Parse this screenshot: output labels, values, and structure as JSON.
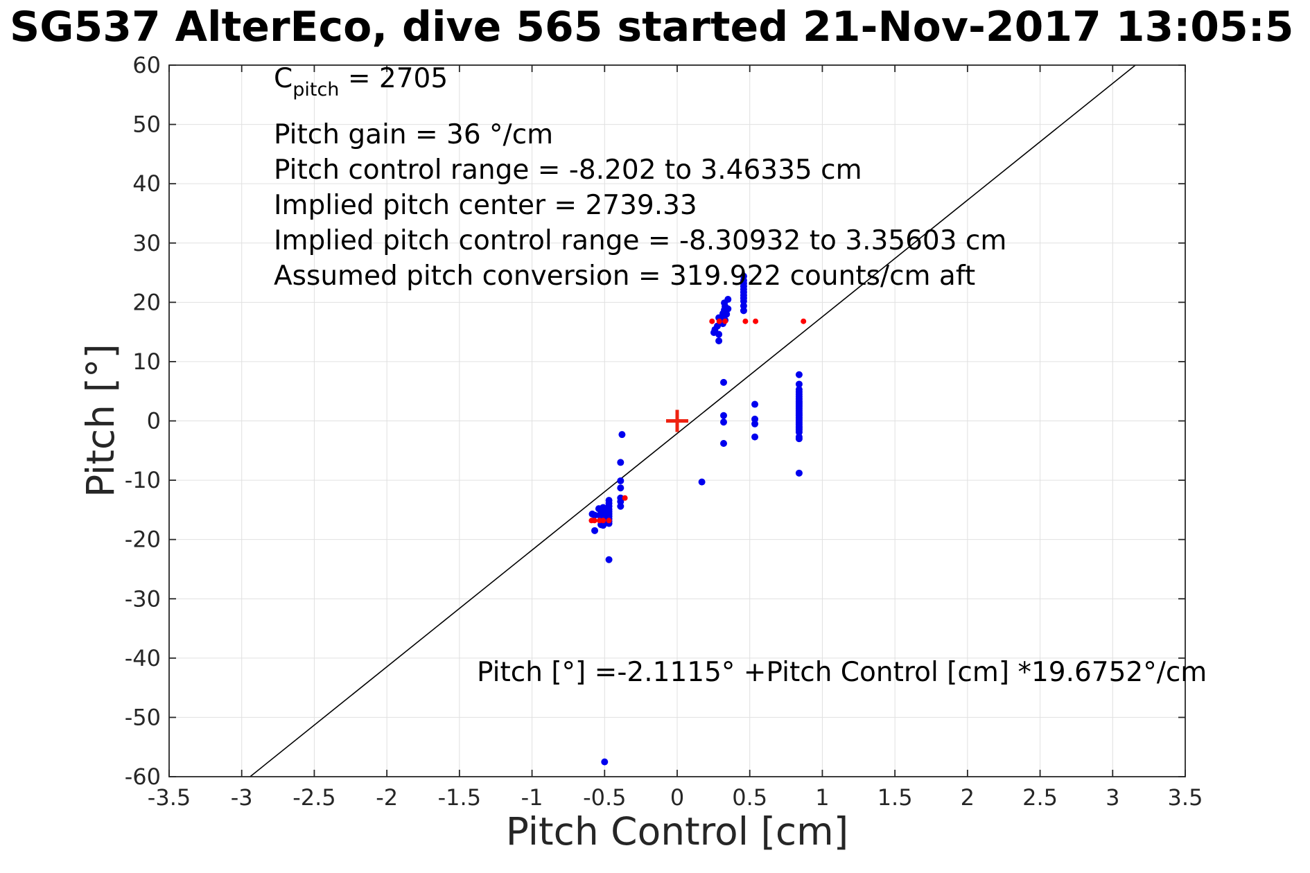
{
  "title": "SG537 AlterEco, dive 565 started 21-Nov-2017 13:05:5",
  "annotations": {
    "c_base": "C",
    "c_sub": "pitch",
    "c_rest": " = 2705",
    "lines": [
      "Pitch gain = 36 °/cm",
      "Pitch control range = -8.202 to 3.46335 cm",
      "Implied pitch center = 2739.33",
      "Implied pitch control range = -8.30932 to 3.35603 cm",
      "Assumed pitch conversion = 319.922 counts/cm aft"
    ]
  },
  "equation": "Pitch [°] =-2.1115° +Pitch Control [cm] *19.6752°/cm",
  "chart_data": {
    "type": "scatter",
    "title": "SG537 AlterEco, dive 565 started 21-Nov-2017 13:05:5",
    "xlabel": "Pitch Control [cm]",
    "ylabel": "Pitch [°]",
    "xlim": [
      -3.5,
      3.5
    ],
    "ylim": [
      -60,
      60
    ],
    "xticks": [
      -3.5,
      -3,
      -2.5,
      -2,
      -1.5,
      -1,
      -0.5,
      0,
      0.5,
      1,
      1.5,
      2,
      2.5,
      3,
      3.5
    ],
    "xtick_labels": [
      "-3.5",
      "-3",
      "-2.5",
      "-2",
      "-1.5",
      "-1",
      "-0.5",
      "0",
      "0.5",
      "1",
      "1.5",
      "2",
      "2.5",
      "3",
      "3.5"
    ],
    "yticks": [
      -60,
      -50,
      -40,
      -30,
      -20,
      -10,
      0,
      10,
      20,
      30,
      40,
      50,
      60
    ],
    "ytick_labels": [
      "-60",
      "-50",
      "-40",
      "-30",
      "-20",
      "-10",
      "0",
      "10",
      "20",
      "30",
      "40",
      "50",
      "60"
    ],
    "grid": true,
    "grid_color": "#e0e0e0",
    "axis_color": "#262626",
    "fit_line": {
      "slope": 19.6752,
      "intercept": -2.1115,
      "color": "#000000"
    },
    "series": [
      {
        "name": "observed-pitch-blue",
        "color": "#0000ee",
        "marker": "dot",
        "size": 5,
        "points": [
          [
            -0.5,
            -57.5
          ],
          [
            -0.47,
            -23.4
          ],
          [
            -0.38,
            -2.3
          ],
          [
            -0.39,
            -7.0
          ],
          [
            -0.39,
            -10.1
          ],
          [
            -0.39,
            -11.3
          ],
          [
            -0.39,
            -13.0
          ],
          [
            -0.39,
            -13.6
          ],
          [
            -0.39,
            -14.4
          ],
          [
            -0.47,
            -13.4
          ],
          [
            -0.47,
            -13.9
          ],
          [
            -0.47,
            -14.4
          ],
          [
            -0.47,
            -14.9
          ],
          [
            -0.47,
            -15.3
          ],
          [
            -0.47,
            -15.7
          ],
          [
            -0.47,
            -16.1
          ],
          [
            -0.47,
            -16.5
          ],
          [
            -0.47,
            -16.9
          ],
          [
            -0.47,
            -17.3
          ],
          [
            -0.51,
            -14.6
          ],
          [
            -0.51,
            -15.1
          ],
          [
            -0.51,
            -15.6
          ],
          [
            -0.51,
            -16.1
          ],
          [
            -0.51,
            -16.6
          ],
          [
            -0.51,
            -17.1
          ],
          [
            -0.51,
            -17.6
          ],
          [
            -0.535,
            -15.9
          ],
          [
            -0.568,
            -15.9
          ],
          [
            -0.585,
            -15.7
          ],
          [
            -0.54,
            -14.8
          ],
          [
            -0.525,
            -17.5
          ],
          [
            -0.568,
            -18.5
          ],
          [
            0.17,
            -10.3
          ],
          [
            0.32,
            6.5
          ],
          [
            0.32,
            0.9
          ],
          [
            0.32,
            -0.2
          ],
          [
            0.32,
            -3.8
          ],
          [
            0.535,
            2.8
          ],
          [
            0.535,
            0.3
          ],
          [
            0.535,
            -0.5
          ],
          [
            0.535,
            -2.7
          ],
          [
            0.35,
            20.5
          ],
          [
            0.325,
            19.9
          ],
          [
            0.33,
            19.3
          ],
          [
            0.35,
            18.9
          ],
          [
            0.325,
            18.7
          ],
          [
            0.315,
            18.1
          ],
          [
            0.34,
            18.0
          ],
          [
            0.32,
            17.6
          ],
          [
            0.31,
            17.5
          ],
          [
            0.287,
            17.4
          ],
          [
            0.33,
            17.0
          ],
          [
            0.3,
            16.9
          ],
          [
            0.315,
            16.4
          ],
          [
            0.277,
            16.0
          ],
          [
            0.26,
            15.4
          ],
          [
            0.253,
            14.9
          ],
          [
            0.287,
            14.6
          ],
          [
            0.287,
            13.5
          ],
          [
            0.458,
            24.4
          ],
          [
            0.458,
            23.7
          ],
          [
            0.458,
            23.2
          ],
          [
            0.458,
            22.7
          ],
          [
            0.458,
            22.2
          ],
          [
            0.458,
            21.7
          ],
          [
            0.458,
            21.2
          ],
          [
            0.458,
            20.7
          ],
          [
            0.458,
            20.2
          ],
          [
            0.458,
            19.4
          ],
          [
            0.458,
            18.6
          ],
          [
            0.84,
            7.8
          ],
          [
            0.84,
            6.2
          ],
          [
            0.84,
            5.3
          ],
          [
            0.84,
            4.9
          ],
          [
            0.84,
            4.5
          ],
          [
            0.84,
            4.1
          ],
          [
            0.84,
            3.7
          ],
          [
            0.84,
            3.3
          ],
          [
            0.84,
            3.0
          ],
          [
            0.84,
            2.7
          ],
          [
            0.84,
            2.4
          ],
          [
            0.84,
            2.1
          ],
          [
            0.84,
            1.8
          ],
          [
            0.84,
            1.5
          ],
          [
            0.84,
            1.2
          ],
          [
            0.84,
            0.9
          ],
          [
            0.84,
            0.6
          ],
          [
            0.84,
            0.3
          ],
          [
            0.84,
            0.0
          ],
          [
            0.84,
            -0.3
          ],
          [
            0.84,
            -0.6
          ],
          [
            0.84,
            -0.9
          ],
          [
            0.84,
            -1.2
          ],
          [
            0.84,
            -1.5
          ],
          [
            0.84,
            -1.9
          ],
          [
            0.84,
            -2.7
          ],
          [
            0.84,
            -3.0
          ],
          [
            0.84,
            -8.8
          ]
        ]
      },
      {
        "name": "flagged-pitch-red",
        "color": "#ff0000",
        "marker": "dot",
        "size": 4,
        "points": [
          [
            0.24,
            16.8
          ],
          [
            0.29,
            16.8
          ],
          [
            0.33,
            16.8
          ],
          [
            0.47,
            16.8
          ],
          [
            0.54,
            16.8
          ],
          [
            0.87,
            16.8
          ],
          [
            -0.59,
            -16.8
          ],
          [
            -0.57,
            -16.8
          ],
          [
            -0.535,
            -16.8
          ],
          [
            -0.51,
            -16.8
          ],
          [
            -0.47,
            -16.8
          ],
          [
            -0.36,
            -13.0
          ]
        ]
      },
      {
        "name": "pitch-center-cross",
        "color": "#ee2211",
        "marker": "plus",
        "size": 16,
        "points": [
          [
            0,
            0
          ]
        ]
      }
    ]
  }
}
